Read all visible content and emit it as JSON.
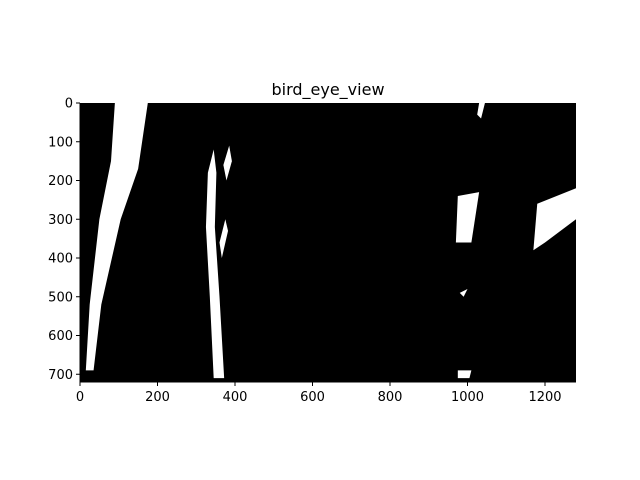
{
  "chart_data": {
    "type": "image",
    "title": "bird_eye_view",
    "xlabel": "",
    "ylabel": "",
    "xlim": [
      0,
      1280
    ],
    "ylim": [
      720,
      0
    ],
    "x_ticks": [
      0,
      200,
      400,
      600,
      800,
      1000,
      1200
    ],
    "y_ticks": [
      0,
      100,
      200,
      300,
      400,
      500,
      600,
      700
    ],
    "x_tick_labels": [
      "0",
      "200",
      "400",
      "600",
      "800",
      "1000",
      "1200"
    ],
    "y_tick_labels": [
      "0",
      "100",
      "200",
      "300",
      "400",
      "500",
      "600",
      "700"
    ],
    "background_color": "#000000",
    "foreground_color": "#ffffff",
    "description_layers": [
      {
        "name": "left-lane-band",
        "points": [
          [
            90,
            0
          ],
          [
            175,
            0
          ],
          [
            150,
            170
          ],
          [
            105,
            300
          ],
          [
            55,
            520
          ],
          [
            35,
            690
          ],
          [
            15,
            690
          ],
          [
            25,
            520
          ],
          [
            50,
            300
          ],
          [
            80,
            150
          ]
        ]
      },
      {
        "name": "left-lane-stripe",
        "points": [
          [
            110,
            0
          ],
          [
            145,
            0
          ],
          [
            130,
            120
          ],
          [
            115,
            110
          ]
        ]
      },
      {
        "name": "center-lane",
        "points": [
          [
            330,
            180
          ],
          [
            345,
            120
          ],
          [
            352,
            180
          ],
          [
            348,
            320
          ],
          [
            360,
            500
          ],
          [
            372,
            710
          ],
          [
            345,
            710
          ],
          [
            335,
            500
          ],
          [
            325,
            320
          ]
        ]
      },
      {
        "name": "center-lane-dash",
        "points": [
          [
            370,
            160
          ],
          [
            385,
            110
          ],
          [
            392,
            150
          ],
          [
            378,
            200
          ]
        ]
      },
      {
        "name": "center-lane-dash-2",
        "points": [
          [
            360,
            360
          ],
          [
            375,
            300
          ],
          [
            382,
            330
          ],
          [
            366,
            400
          ]
        ]
      },
      {
        "name": "right-lane-top",
        "points": [
          [
            1030,
            0
          ],
          [
            1045,
            0
          ],
          [
            1035,
            40
          ],
          [
            1025,
            30
          ]
        ]
      },
      {
        "name": "right-lane-mid",
        "points": [
          [
            975,
            240
          ],
          [
            1030,
            230
          ],
          [
            1010,
            360
          ],
          [
            970,
            360
          ]
        ]
      },
      {
        "name": "right-lane-low",
        "points": [
          [
            980,
            490
          ],
          [
            1000,
            480
          ],
          [
            990,
            500
          ]
        ]
      },
      {
        "name": "far-right-glare",
        "points": [
          [
            1180,
            260
          ],
          [
            1280,
            220
          ],
          [
            1280,
            300
          ],
          [
            1200,
            360
          ],
          [
            1170,
            380
          ]
        ]
      },
      {
        "name": "bottom-speckle",
        "points": [
          [
            975,
            690
          ],
          [
            1010,
            690
          ],
          [
            1005,
            710
          ],
          [
            975,
            710
          ]
        ]
      }
    ]
  }
}
